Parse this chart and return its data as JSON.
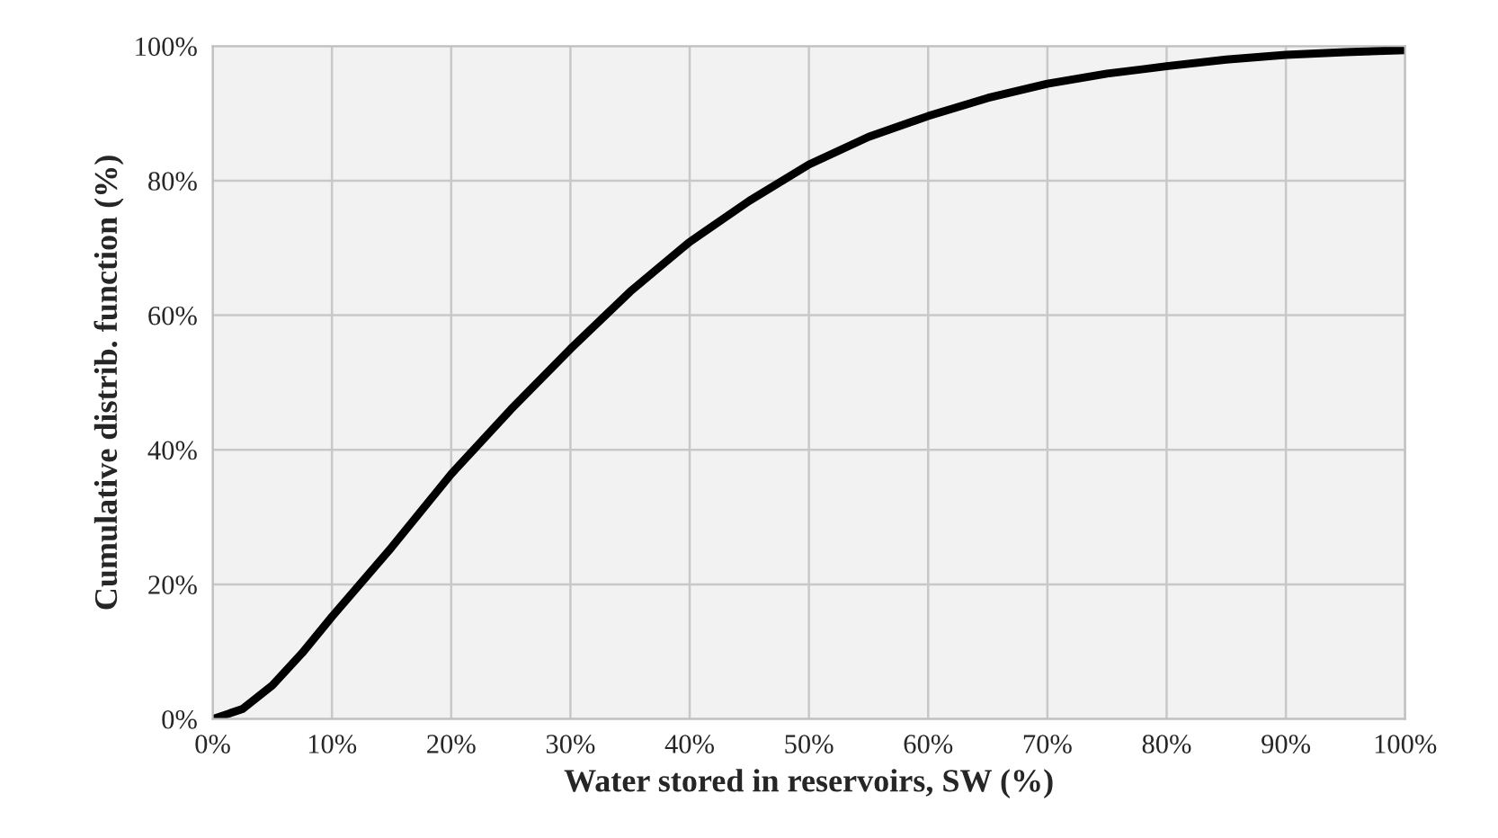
{
  "chart_data": {
    "type": "line",
    "xlabel": "Water stored in reservoirs, SW (%)",
    "ylabel": "Cumulative distrib. function (%)",
    "series": [
      {
        "color": "#000000",
        "x": [
          0,
          2.5,
          5,
          7.5,
          10,
          15,
          20,
          25,
          30,
          35,
          40,
          45,
          50,
          55,
          60,
          65,
          70,
          75,
          80,
          85,
          90,
          95,
          100
        ],
        "values": [
          0,
          1.5,
          5,
          9.8,
          15.2,
          25.5,
          36.4,
          46,
          55,
          63.5,
          70.9,
          77,
          82.4,
          86.5,
          89.6,
          92.3,
          94.4,
          95.9,
          97,
          98,
          98.7,
          99.1,
          99.4
        ]
      }
    ],
    "xlim": [
      0,
      100
    ],
    "ylim": [
      0,
      100
    ],
    "xticks": [
      {
        "value": 0,
        "label": "0%"
      },
      {
        "value": 10,
        "label": "10%"
      },
      {
        "value": 20,
        "label": "20%"
      },
      {
        "value": 30,
        "label": "30%"
      },
      {
        "value": 40,
        "label": "40%"
      },
      {
        "value": 50,
        "label": "50%"
      },
      {
        "value": 60,
        "label": "60%"
      },
      {
        "value": 70,
        "label": "70%"
      },
      {
        "value": 80,
        "label": "80%"
      },
      {
        "value": 90,
        "label": "90%"
      },
      {
        "value": 100,
        "label": "100%"
      }
    ],
    "yticks": [
      {
        "value": 0,
        "label": "0%"
      },
      {
        "value": 20,
        "label": "20%"
      },
      {
        "value": 40,
        "label": "40%"
      },
      {
        "value": 60,
        "label": "60%"
      },
      {
        "value": 80,
        "label": "80%"
      },
      {
        "value": 100,
        "label": "100%"
      }
    ],
    "grid": true,
    "marker": "none",
    "line_style": "solid",
    "legend": false
  }
}
